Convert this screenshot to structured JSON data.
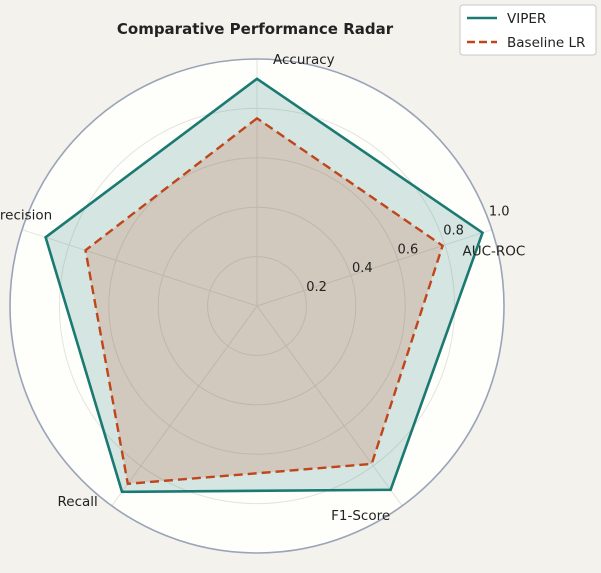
{
  "chart_data": {
    "type": "radar",
    "title": "Comparative Performance Radar",
    "axes": [
      "Accuracy",
      "Precision",
      "Recall",
      "F1-Score",
      "AUC-ROC"
    ],
    "rlim": [
      0,
      1.0
    ],
    "rticks": [
      0.2,
      0.4,
      0.6,
      0.8,
      1.0
    ],
    "rtick_labels": [
      "0.2",
      "0.4",
      "0.6",
      "0.8",
      "1.0"
    ],
    "grid": true,
    "legend_position": "top-right",
    "series": [
      {
        "name": "VIPER",
        "values": [
          0.92,
          0.9,
          0.93,
          0.92,
          0.96
        ],
        "color": "#1a7a72",
        "line_style": "solid",
        "fill": true
      },
      {
        "name": "Baseline LR",
        "values": [
          0.76,
          0.73,
          0.89,
          0.79,
          0.79
        ],
        "color": "#c0451a",
        "line_style": "dashed",
        "fill": true
      }
    ]
  }
}
